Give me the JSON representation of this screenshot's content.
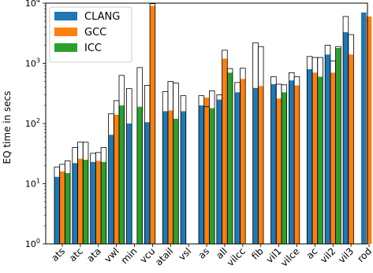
{
  "chart_data": {
    "type": "bar",
    "ylabel": "EQ time in secs",
    "yscale": "log",
    "ylim": [
      1,
      10000
    ],
    "y_tick_labels": [
      "10^0",
      "10^1",
      "10^2",
      "10^3",
      "10^4"
    ],
    "legend_placement": "top-left",
    "categories": [
      "ats",
      "atc",
      "ata",
      "vwl",
      "min",
      "vcu",
      "atail",
      "vsl",
      "as",
      "all",
      "vilcc",
      "fib",
      "vil1",
      "vilce",
      "ac",
      "vil2",
      "vil3",
      "rod"
    ],
    "series": [
      {
        "name": "CLANG",
        "color": "#1f77b4",
        "values": [
          13,
          22,
          23,
          65,
          100,
          105,
          160,
          160,
          200,
          250,
          330,
          390,
          450,
          520,
          800,
          1400,
          3300,
          7000
        ],
        "outline_values": [
          19,
          40,
          32,
          145,
          380,
          430,
          340,
          290,
          290,
          300,
          480,
          2200,
          600,
          700,
          1300,
          2000,
          6000,
          null
        ]
      },
      {
        "name": "GCC",
        "color": "#ff7f0e",
        "values": [
          16,
          26,
          24,
          140,
          null,
          9000,
          165,
          null,
          270,
          1200,
          550,
          420,
          260,
          430,
          700,
          700,
          1400,
          6000
        ],
        "outline_values": [
          21,
          49,
          33,
          240,
          null,
          9800,
          500,
          null,
          190,
          1650,
          830,
          1900,
          450,
          600,
          1250,
          1100,
          3000,
          null
        ]
      },
      {
        "name": "ICC",
        "color": "#2ca02c",
        "values": [
          15,
          25,
          23,
          200,
          190,
          null,
          120,
          null,
          180,
          700,
          null,
          null,
          330,
          null,
          600,
          1800,
          null,
          null
        ],
        "outline_values": [
          24,
          49,
          40,
          630,
          850,
          null,
          470,
          null,
          350,
          820,
          null,
          null,
          440,
          null,
          1250,
          1900,
          null,
          null
        ]
      }
    ]
  }
}
